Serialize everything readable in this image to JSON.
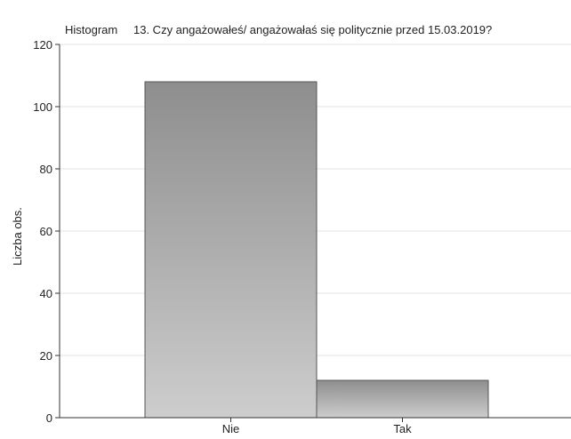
{
  "chart_data": {
    "type": "bar",
    "title_prefix": "Histogram",
    "title": "13. Czy angażowałeś/ angażowałaś się politycznie przed 15.03.2019?",
    "xlabel": "",
    "ylabel": "Liczba obs.",
    "categories": [
      "Nie",
      "Tak"
    ],
    "values": [
      108,
      12
    ],
    "ylim": [
      0,
      120
    ],
    "yticks": [
      0,
      20,
      40,
      60,
      80,
      100,
      120
    ],
    "grid": true,
    "legend": "none"
  }
}
